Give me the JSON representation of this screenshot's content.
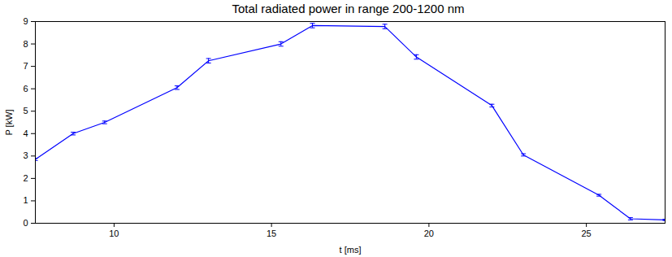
{
  "chart_data": {
    "type": "line",
    "title": "Total radiated power in range 200-1200 nm",
    "x_label": "t [ms]",
    "y_label": "P [kW]",
    "x": [
      7.5,
      8.7,
      9.7,
      12.0,
      13.0,
      15.3,
      16.3,
      18.6,
      19.6,
      22.0,
      23.0,
      25.4,
      26.4,
      27.5
    ],
    "series": [
      {
        "name": "P",
        "color": "#0000ff",
        "values": [
          2.85,
          4.0,
          4.5,
          6.05,
          7.25,
          8.0,
          8.82,
          8.78,
          7.42,
          5.25,
          3.05,
          1.25,
          0.2,
          0.15
        ],
        "errors": [
          0.05,
          0.06,
          0.06,
          0.08,
          0.1,
          0.1,
          0.1,
          0.1,
          0.1,
          0.06,
          0.05,
          0.04,
          0.05,
          0.03
        ]
      }
    ],
    "xlim": [
      7.5,
      27.5
    ],
    "xticks": [
      10,
      15,
      20,
      25
    ],
    "ylim": [
      0,
      9
    ],
    "yticks": [
      0,
      1,
      2,
      3,
      4,
      5,
      6,
      7,
      8,
      9
    ],
    "grid": false
  }
}
